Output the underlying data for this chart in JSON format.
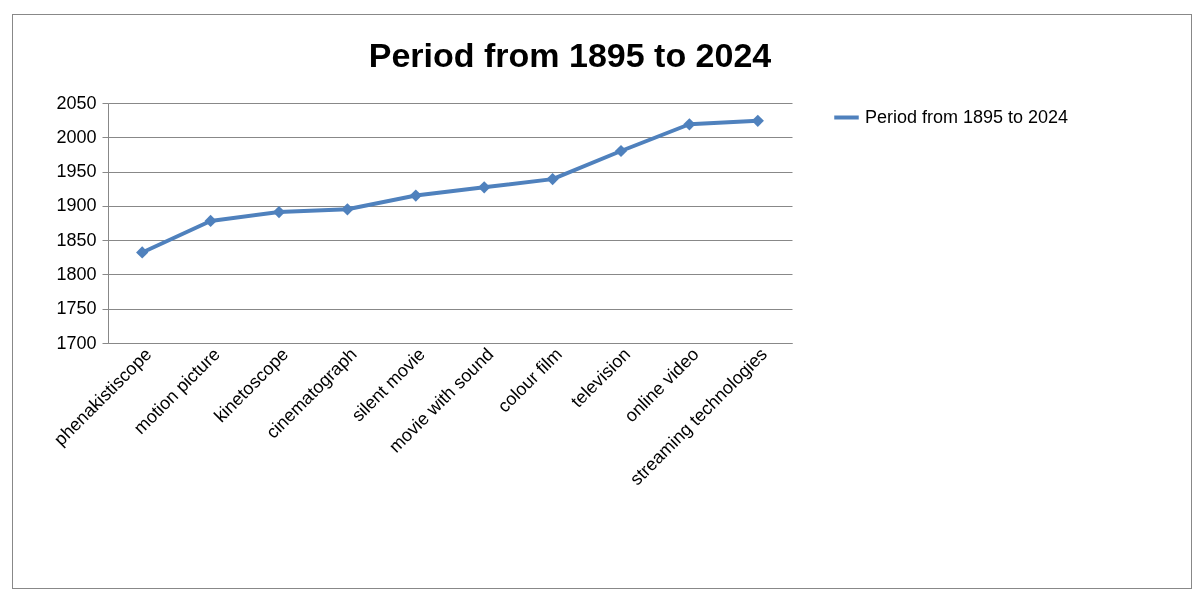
{
  "chart_data": {
    "type": "line",
    "title": "Period from 1895 to 2024",
    "categories": [
      "phenakistiscope",
      "motion picture",
      "kinetoscope",
      "cinematograph",
      "silent movie",
      "movie with sound",
      "colour film",
      "television",
      "online video",
      "streaming technologies"
    ],
    "series": [
      {
        "name": "Period from 1895 to 2024",
        "color": "#4f81bd",
        "values": [
          1832,
          1878,
          1891,
          1895,
          1915,
          1927,
          1939,
          1980,
          2019,
          2024
        ]
      }
    ],
    "ylim": [
      1700,
      2050
    ],
    "yticks": [
      1700,
      1750,
      1800,
      1850,
      1900,
      1950,
      2000,
      2050
    ],
    "grid": "y",
    "legend": "right",
    "marker": "diamond",
    "line_style": "solid"
  }
}
